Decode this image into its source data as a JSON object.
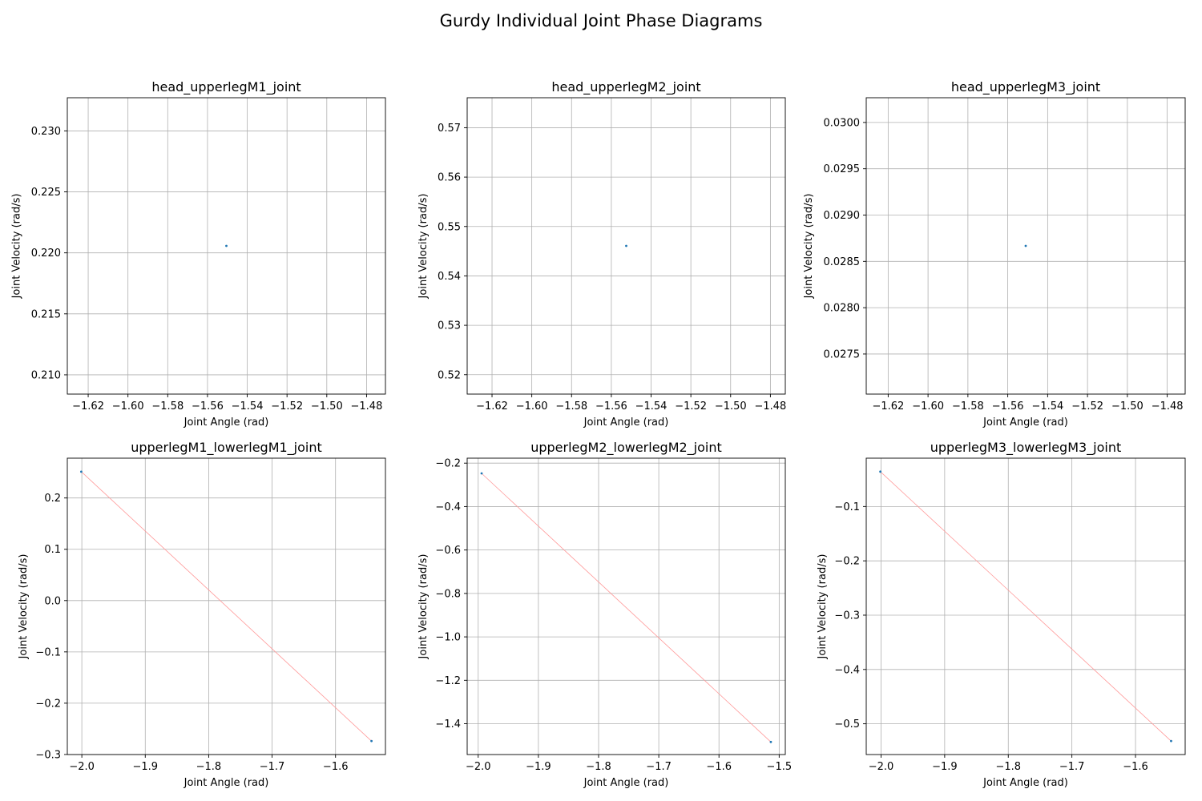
{
  "figure": {
    "title": "Gurdy Individual Joint Phase Diagrams"
  },
  "colors": {
    "point": "#1f77b4",
    "line": "#ff9999",
    "grid": "#b0b0b0",
    "axes": "#000000"
  },
  "chart_data": [
    {
      "type": "scatter",
      "title": "head_upperlegM1_joint",
      "xlabel": "Joint Angle (rad)",
      "ylabel": "Joint Velocity (rad/s)",
      "xlim": [
        -1.6305,
        -1.4705
      ],
      "ylim": [
        0.20842,
        0.23272
      ],
      "xticks": [
        -1.62,
        -1.6,
        -1.58,
        -1.56,
        -1.54,
        -1.52,
        -1.5,
        -1.48
      ],
      "xtick_labels": [
        "−1.62",
        "−1.60",
        "−1.58",
        "−1.56",
        "−1.54",
        "−1.52",
        "−1.50",
        "−1.48"
      ],
      "yticks": [
        0.21,
        0.215,
        0.22,
        0.225,
        0.23
      ],
      "ytick_labels": [
        "0.210",
        "0.215",
        "0.220",
        "0.225",
        "0.230"
      ],
      "grid": true,
      "points": [
        {
          "x": -1.5505,
          "y": 0.22057
        }
      ]
    },
    {
      "type": "scatter",
      "title": "head_upperlegM2_joint",
      "xlabel": "Joint Angle (rad)",
      "ylabel": "Joint Velocity (rad/s)",
      "xlim": [
        -1.6325,
        -1.4725
      ],
      "ylim": [
        0.51607,
        0.57607
      ],
      "xticks": [
        -1.62,
        -1.6,
        -1.58,
        -1.56,
        -1.54,
        -1.52,
        -1.5,
        -1.48
      ],
      "xtick_labels": [
        "−1.62",
        "−1.60",
        "−1.58",
        "−1.56",
        "−1.54",
        "−1.52",
        "−1.50",
        "−1.48"
      ],
      "yticks": [
        0.52,
        0.53,
        0.54,
        0.55,
        0.56,
        0.57
      ],
      "ytick_labels": [
        "0.52",
        "0.53",
        "0.54",
        "0.55",
        "0.56",
        "0.57"
      ],
      "grid": true,
      "points": [
        {
          "x": -1.5525,
          "y": 0.54607
        }
      ]
    },
    {
      "type": "scatter",
      "title": "head_upperlegM3_joint",
      "xlabel": "Joint Angle (rad)",
      "ylabel": "Joint Velocity (rad/s)",
      "xlim": [
        -1.631,
        -1.471
      ],
      "ylim": [
        0.027067,
        0.030267
      ],
      "xticks": [
        -1.62,
        -1.6,
        -1.58,
        -1.56,
        -1.54,
        -1.52,
        -1.5,
        -1.48
      ],
      "xtick_labels": [
        "−1.62",
        "−1.60",
        "−1.58",
        "−1.56",
        "−1.54",
        "−1.52",
        "−1.50",
        "−1.48"
      ],
      "yticks": [
        0.0275,
        0.028,
        0.0285,
        0.029,
        0.0295,
        0.03
      ],
      "ytick_labels": [
        "0.0275",
        "0.0280",
        "0.0285",
        "0.0290",
        "0.0295",
        "0.0300"
      ],
      "grid": true,
      "points": [
        {
          "x": -1.551,
          "y": 0.028667
        }
      ]
    },
    {
      "type": "line",
      "title": "upperlegM1_lowerlegM1_joint",
      "xlabel": "Joint Angle (rad)",
      "ylabel": "Joint Velocity (rad/s)",
      "xlim": [
        -2.0229,
        -1.5213
      ],
      "ylim": [
        -0.3001,
        0.2776
      ],
      "xticks": [
        -2.0,
        -1.9,
        -1.8,
        -1.7,
        -1.6
      ],
      "xtick_labels": [
        "−2.0",
        "−1.9",
        "−1.8",
        "−1.7",
        "−1.6"
      ],
      "yticks": [
        -0.3,
        -0.2,
        -0.1,
        0.0,
        0.1,
        0.2
      ],
      "ytick_labels": [
        "−0.3",
        "−0.2",
        "−0.1",
        "0.0",
        "0.1",
        "0.2"
      ],
      "grid": true,
      "points": [
        {
          "x": -2.0009,
          "y": 0.2513
        },
        {
          "x": -1.5433,
          "y": -0.2738
        }
      ]
    },
    {
      "type": "line",
      "title": "upperlegM2_lowerlegM2_joint",
      "xlabel": "Joint Angle (rad)",
      "ylabel": "Joint Velocity (rad/s)",
      "xlim": [
        -2.0183,
        -1.4898
      ],
      "ylim": [
        -1.5419,
        -0.1771
      ],
      "xticks": [
        -2.0,
        -1.9,
        -1.8,
        -1.7,
        -1.6,
        -1.5
      ],
      "xtick_labels": [
        "−2.0",
        "−1.9",
        "−1.8",
        "−1.7",
        "−1.6",
        "−1.5"
      ],
      "yticks": [
        -1.4,
        -1.2,
        -1.0,
        -0.8,
        -0.6,
        -0.4,
        -0.2
      ],
      "ytick_labels": [
        "−1.4",
        "−1.2",
        "−1.0",
        "−0.8",
        "−0.6",
        "−0.4",
        "−0.2"
      ],
      "grid": true,
      "points": [
        {
          "x": -1.9943,
          "y": -0.2472
        },
        {
          "x": -1.5138,
          "y": -1.484
        }
      ]
    },
    {
      "type": "line",
      "title": "upperlegM3_lowerlegM3_joint",
      "xlabel": "Joint Angle (rad)",
      "ylabel": "Joint Velocity (rad/s)",
      "xlim": [
        -2.0233,
        -1.5219
      ],
      "ylim": [
        -0.5566,
        -0.011
      ],
      "xticks": [
        -2.0,
        -1.9,
        -1.8,
        -1.7,
        -1.6
      ],
      "xtick_labels": [
        "−2.0",
        "−1.9",
        "−1.8",
        "−1.7",
        "−1.6"
      ],
      "yticks": [
        -0.5,
        -0.4,
        -0.3,
        -0.2,
        -0.1
      ],
      "ytick_labels": [
        "−0.5",
        "−0.4",
        "−0.3",
        "−0.2",
        "−0.1"
      ],
      "grid": true,
      "points": [
        {
          "x": -2.0011,
          "y": -0.0358
        },
        {
          "x": -1.544,
          "y": -0.5318
        }
      ]
    }
  ]
}
